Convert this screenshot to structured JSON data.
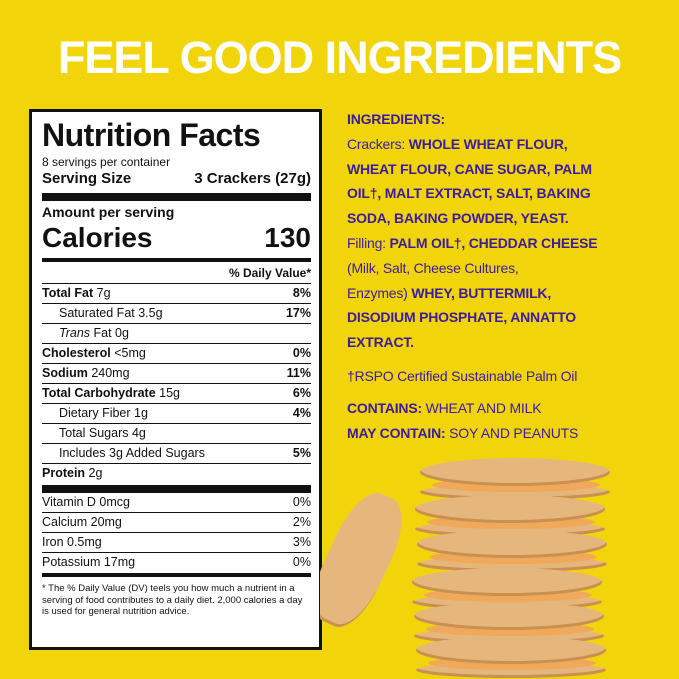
{
  "headline": "FEEL GOOD INGREDIENTS",
  "colors": {
    "background": "#f2d40b",
    "ingredients_text": "#3a1c9c",
    "headline": "#ffffff"
  },
  "nutrition": {
    "title": "Nutrition Facts",
    "servings": "8 servings per container",
    "serving_size_label": "Serving Size",
    "serving_size_value": "3 Crackers (27g)",
    "amount_per_serving": "Amount per serving",
    "calories_label": "Calories",
    "calories_value": "130",
    "dv_header": "% Daily Value*",
    "rows": [
      {
        "name": "Total Fat",
        "amount": " 7g",
        "pct": "8%"
      },
      {
        "name": "Saturated Fat 3.5g",
        "amount": "",
        "pct": "17%"
      },
      {
        "name": "Trans",
        "amount": " Fat 0g",
        "pct": ""
      },
      {
        "name": "Cholesterol",
        "amount": " <5mg",
        "pct": "0%"
      },
      {
        "name": "Sodium",
        "amount": " 240mg",
        "pct": "11%"
      },
      {
        "name": "Total Carbohydrate",
        "amount": " 15g",
        "pct": "6%"
      },
      {
        "name": "Dietary Fiber 1g",
        "amount": "",
        "pct": "4%"
      },
      {
        "name": "Total Sugars 4g",
        "amount": "",
        "pct": ""
      },
      {
        "name": "Includes 3g Added Sugars",
        "amount": "",
        "pct": "5%"
      },
      {
        "name": "Protein",
        "amount": " 2g",
        "pct": ""
      }
    ],
    "vitamins": [
      {
        "name": "Vitamin D 0mcg",
        "pct": "0%"
      },
      {
        "name": "Calcium 20mg",
        "pct": "2%"
      },
      {
        "name": "Iron 0.5mg",
        "pct": "3%"
      },
      {
        "name": "Potassium 17mg",
        "pct": "0%"
      }
    ],
    "footnote": "* The % Daily Value (DV) teels you how much a nutrient in a serving of food contributes to a daily diet. 2,000 calories a day is used for general nutrition advice."
  },
  "ingredients": {
    "lines": [
      [
        {
          "t": "INGREDIENTS:",
          "b": true
        }
      ],
      [
        {
          "t": "Crackers: ",
          "b": false
        },
        {
          "t": "WHOLE WHEAT FLOUR,",
          "b": true
        }
      ],
      [
        {
          "t": "WHEAT FLOUR, CANE SUGAR, PALM",
          "b": true
        }
      ],
      [
        {
          "t": "OIL†, MALT EXTRACT, SALT, BAKING",
          "b": true
        }
      ],
      [
        {
          "t": "SODA, BAKING POWDER, YEAST.",
          "b": true
        }
      ],
      [
        {
          "t": "Filling: ",
          "b": false
        },
        {
          "t": "PALM OIL†, CHEDDAR CHEESE",
          "b": true
        }
      ],
      [
        {
          "t": "(Milk, Salt, Cheese Cultures,",
          "b": false
        }
      ],
      [
        {
          "t": "Enzymes) ",
          "b": false
        },
        {
          "t": "WHEY, BUTTERMILK,",
          "b": true
        }
      ],
      [
        {
          "t": "DISODIUM PHOSPHATE, ANNATTO",
          "b": true
        }
      ],
      [
        {
          "t": "EXTRACT.",
          "b": true
        }
      ]
    ],
    "rspo_note": "†RSPO Certified Sustainable Palm Oil",
    "contains_label": "CONTAINS:",
    "contains_value": " WHEAT AND MILK",
    "may_contain_label": "MAY CONTAIN:",
    "may_contain_value": " SOY AND PEANUTS"
  }
}
